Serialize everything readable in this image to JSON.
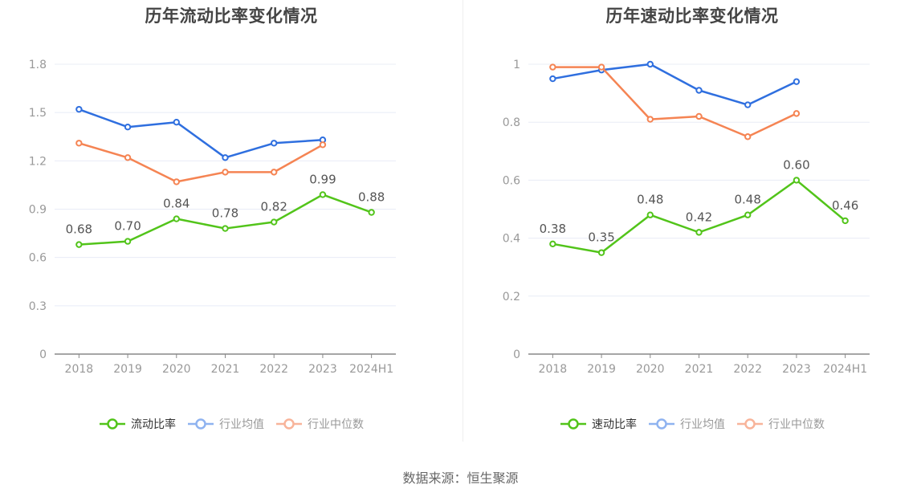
{
  "colors": {
    "main": "#52c41a",
    "avg": "#2f6fdf",
    "median": "#f58453",
    "avg_legend": "#8fb3f0",
    "median_legend": "#f8b49a",
    "grid": "#e8ecf6",
    "axis": "#888888",
    "tick_text": "#999999",
    "label_text": "#555555"
  },
  "source": "数据来源：恒生聚源",
  "chart_data": [
    {
      "type": "line",
      "title": "历年流动比率变化情况",
      "categories": [
        "2018",
        "2019",
        "2020",
        "2021",
        "2022",
        "2023",
        "2024H1"
      ],
      "ylim": [
        0,
        1.8
      ],
      "yticks": [
        "0",
        "0.3",
        "0.6",
        "0.9",
        "1.2",
        "1.5",
        "1.8"
      ],
      "ytick_values": [
        0,
        0.3,
        0.6,
        0.9,
        1.2,
        1.5,
        1.8
      ],
      "grid": true,
      "legend_position": "bottom",
      "series": [
        {
          "name": "流动比率",
          "key": "main",
          "values": [
            0.68,
            0.7,
            0.84,
            0.78,
            0.82,
            0.99,
            0.88
          ],
          "labels": [
            "0.68",
            "0.70",
            "0.84",
            "0.78",
            "0.82",
            "0.99",
            "0.88"
          ]
        },
        {
          "name": "行业均值",
          "key": "avg",
          "values": [
            1.52,
            1.41,
            1.44,
            1.22,
            1.31,
            1.33,
            null
          ]
        },
        {
          "name": "行业中位数",
          "key": "median",
          "values": [
            1.31,
            1.22,
            1.07,
            1.13,
            1.13,
            1.3,
            null
          ]
        }
      ]
    },
    {
      "type": "line",
      "title": "历年速动比率变化情况",
      "categories": [
        "2018",
        "2019",
        "2020",
        "2021",
        "2022",
        "2023",
        "2024H1"
      ],
      "ylim": [
        0,
        1
      ],
      "yticks": [
        "0",
        "0.2",
        "0.4",
        "0.6",
        "0.8",
        "1"
      ],
      "ytick_values": [
        0,
        0.2,
        0.4,
        0.6,
        0.8,
        1
      ],
      "grid": true,
      "legend_position": "bottom",
      "series": [
        {
          "name": "速动比率",
          "key": "main",
          "values": [
            0.38,
            0.35,
            0.48,
            0.42,
            0.48,
            0.6,
            0.46
          ],
          "labels": [
            "0.38",
            "0.35",
            "0.48",
            "0.42",
            "0.48",
            "0.60",
            "0.46"
          ]
        },
        {
          "name": "行业均值",
          "key": "avg",
          "values": [
            0.95,
            0.98,
            1.0,
            0.91,
            0.86,
            0.94,
            null
          ]
        },
        {
          "name": "行业中位数",
          "key": "median",
          "values": [
            0.99,
            0.99,
            0.81,
            0.82,
            0.75,
            0.83,
            null
          ]
        }
      ]
    }
  ]
}
